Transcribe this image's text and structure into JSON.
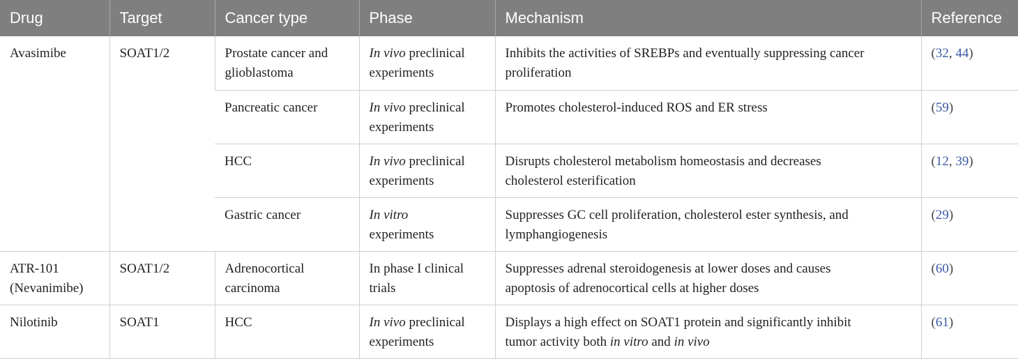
{
  "headers": {
    "drug": "Drug",
    "target": "Target",
    "cancer_type": "Cancer type",
    "phase": "Phase",
    "mechanism": "Mechanism",
    "reference": "Reference"
  },
  "rows": [
    {
      "drug_l1": "Avasimibe",
      "target": "SOAT1/2",
      "cancer_l1": "Prostate cancer and",
      "cancer_l2": "glioblastoma",
      "phase_it": "In vivo",
      "phase_rest": " preclinical",
      "phase_l2": "experiments",
      "mech_l1": "Inhibits the activities of SREBPs and eventually suppressing cancer",
      "mech_l2": "proliferation",
      "ref_open": "(",
      "ref_a": "32",
      "ref_sep": ", ",
      "ref_b": "44",
      "ref_close": ")"
    },
    {
      "cancer_l1": "Pancreatic cancer",
      "phase_it": "In vivo",
      "phase_rest": " preclinical",
      "phase_l2": "experiments",
      "mech_l1": "Promotes cholesterol-induced ROS and ER stress",
      "ref_open": "(",
      "ref_a": "59",
      "ref_close": ")"
    },
    {
      "cancer_l1": "HCC",
      "phase_it": "In vivo",
      "phase_rest": " preclinical",
      "phase_l2": "experiments",
      "mech_l1": "Disrupts cholesterol metabolism homeostasis and decreases",
      "mech_l2": "cholesterol esterification",
      "ref_open": "(",
      "ref_a": "12",
      "ref_sep": ", ",
      "ref_b": "39",
      "ref_close": ")"
    },
    {
      "cancer_l1": "Gastric cancer",
      "phase_it": "In vitro",
      "phase_l2": "experiments",
      "mech_l1": "Suppresses GC cell proliferation, cholesterol ester synthesis, and",
      "mech_l2": "lymphangiogenesis",
      "ref_open": "(",
      "ref_a": "29",
      "ref_close": ")"
    },
    {
      "drug_l1": "ATR-101",
      "drug_l2": "(Nevanimibe)",
      "target": "SOAT1/2",
      "cancer_l1": "Adrenocortical",
      "cancer_l2": "carcinoma",
      "phase_l1": "In phase I clinical",
      "phase_l2": "trials",
      "mech_l1": "Suppresses adrenal steroidogenesis at lower doses and causes",
      "mech_l2": "apoptosis of adrenocortical cells at higher doses",
      "ref_open": "(",
      "ref_a": "60",
      "ref_close": ")"
    },
    {
      "drug_l1": "Nilotinib",
      "target": "SOAT1",
      "cancer_l1": "HCC",
      "phase_it": "In vivo",
      "phase_rest": " preclinical",
      "phase_l2": "experiments",
      "mech_l1": "Displays a high effect on SOAT1 protein and significantly inhibit",
      "mech_l2a": "tumor activity both ",
      "mech_l2b": "in vitro",
      "mech_l2c": " and ",
      "mech_l2d": "in vivo",
      "ref_open": "(",
      "ref_a": "61",
      "ref_close": ")"
    }
  ]
}
